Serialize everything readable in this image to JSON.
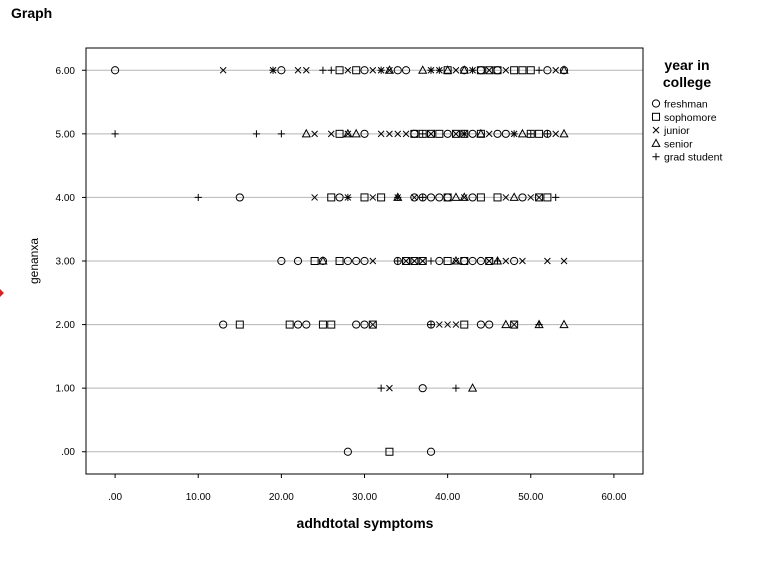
{
  "page": {
    "title": "Graph"
  },
  "chart_data": {
    "type": "scatter",
    "title": "",
    "xlabel": "adhdtotal symptoms",
    "ylabel": "genanxa",
    "xlim": [
      -3.5,
      63.5
    ],
    "ylim": [
      -0.35,
      6.35
    ],
    "x_ticks": [
      0,
      10,
      20,
      30,
      40,
      50,
      60
    ],
    "x_tick_labels": [
      ".00",
      "10.00",
      "20.00",
      "30.00",
      "40.00",
      "50.00",
      "60.00"
    ],
    "y_ticks": [
      0,
      1,
      2,
      3,
      4,
      5,
      6
    ],
    "y_tick_labels": [
      ".00",
      "1.00",
      "2.00",
      "3.00",
      "4.00",
      "5.00",
      "6.00"
    ],
    "grid": "horizontal",
    "legend": {
      "title_lines": [
        "year in",
        "college"
      ],
      "placement": "right"
    },
    "series": [
      {
        "name": "freshman",
        "marker": "circle",
        "points": [
          [
            0,
            6
          ],
          [
            20,
            6
          ],
          [
            30,
            6
          ],
          [
            34,
            6
          ],
          [
            35,
            6
          ],
          [
            42,
            6
          ],
          [
            44,
            6
          ],
          [
            46,
            6
          ],
          [
            52,
            6
          ],
          [
            54,
            6
          ],
          [
            30,
            5
          ],
          [
            36,
            5
          ],
          [
            40,
            5
          ],
          [
            43,
            5
          ],
          [
            46,
            5
          ],
          [
            47,
            5
          ],
          [
            52,
            5
          ],
          [
            15,
            4
          ],
          [
            27,
            4
          ],
          [
            36,
            4
          ],
          [
            37,
            4
          ],
          [
            38,
            4
          ],
          [
            39,
            4
          ],
          [
            40,
            4
          ],
          [
            43,
            4
          ],
          [
            49,
            4
          ],
          [
            20,
            3
          ],
          [
            22,
            3
          ],
          [
            25,
            3
          ],
          [
            28,
            3
          ],
          [
            29,
            3
          ],
          [
            30,
            3
          ],
          [
            34,
            3
          ],
          [
            39,
            3
          ],
          [
            42,
            3
          ],
          [
            43,
            3
          ],
          [
            44,
            3
          ],
          [
            48,
            3
          ],
          [
            13,
            2
          ],
          [
            22,
            2
          ],
          [
            23,
            2
          ],
          [
            29,
            2
          ],
          [
            30,
            2
          ],
          [
            38,
            2
          ],
          [
            44,
            2
          ],
          [
            45,
            2
          ],
          [
            37,
            1
          ],
          [
            28,
            0
          ],
          [
            38,
            0
          ]
        ]
      },
      {
        "name": "sophomore",
        "marker": "square",
        "points": [
          [
            27,
            6
          ],
          [
            29,
            6
          ],
          [
            40,
            6
          ],
          [
            44,
            6
          ],
          [
            45,
            6
          ],
          [
            46,
            6
          ],
          [
            48,
            6
          ],
          [
            49,
            6
          ],
          [
            50,
            6
          ],
          [
            27,
            5
          ],
          [
            36,
            5
          ],
          [
            37,
            5
          ],
          [
            38,
            5
          ],
          [
            39,
            5
          ],
          [
            41,
            5
          ],
          [
            42,
            5
          ],
          [
            44,
            5
          ],
          [
            50,
            5
          ],
          [
            51,
            5
          ],
          [
            26,
            4
          ],
          [
            30,
            4
          ],
          [
            32,
            4
          ],
          [
            40,
            4
          ],
          [
            44,
            4
          ],
          [
            46,
            4
          ],
          [
            51,
            4
          ],
          [
            52,
            4
          ],
          [
            24,
            3
          ],
          [
            27,
            3
          ],
          [
            35,
            3
          ],
          [
            36,
            3
          ],
          [
            37,
            3
          ],
          [
            40,
            3
          ],
          [
            42,
            3
          ],
          [
            45,
            3
          ],
          [
            15,
            2
          ],
          [
            21,
            2
          ],
          [
            25,
            2
          ],
          [
            26,
            2
          ],
          [
            31,
            2
          ],
          [
            42,
            2
          ],
          [
            48,
            2
          ],
          [
            33,
            0
          ]
        ]
      },
      {
        "name": "junior",
        "marker": "x",
        "points": [
          [
            13,
            6
          ],
          [
            19,
            6
          ],
          [
            22,
            6
          ],
          [
            23,
            6
          ],
          [
            28,
            6
          ],
          [
            31,
            6
          ],
          [
            32,
            6
          ],
          [
            33,
            6
          ],
          [
            38,
            6
          ],
          [
            39,
            6
          ],
          [
            41,
            6
          ],
          [
            43,
            6
          ],
          [
            45,
            6
          ],
          [
            47,
            6
          ],
          [
            53,
            6
          ],
          [
            24,
            5
          ],
          [
            26,
            5
          ],
          [
            28,
            5
          ],
          [
            32,
            5
          ],
          [
            33,
            5
          ],
          [
            34,
            5
          ],
          [
            35,
            5
          ],
          [
            38,
            5
          ],
          [
            41,
            5
          ],
          [
            42,
            5
          ],
          [
            45,
            5
          ],
          [
            48,
            5
          ],
          [
            53,
            5
          ],
          [
            24,
            4
          ],
          [
            28,
            4
          ],
          [
            31,
            4
          ],
          [
            34,
            4
          ],
          [
            36,
            4
          ],
          [
            42,
            4
          ],
          [
            47,
            4
          ],
          [
            50,
            4
          ],
          [
            51,
            4
          ],
          [
            31,
            3
          ],
          [
            35,
            3
          ],
          [
            36,
            3
          ],
          [
            37,
            3
          ],
          [
            41,
            3
          ],
          [
            45,
            3
          ],
          [
            47,
            3
          ],
          [
            49,
            3
          ],
          [
            52,
            3
          ],
          [
            54,
            3
          ],
          [
            31,
            2
          ],
          [
            39,
            2
          ],
          [
            40,
            2
          ],
          [
            41,
            2
          ],
          [
            48,
            2
          ],
          [
            33,
            1
          ]
        ]
      },
      {
        "name": "senior",
        "marker": "triangle",
        "points": [
          [
            33,
            6
          ],
          [
            37,
            6
          ],
          [
            40,
            6
          ],
          [
            42,
            6
          ],
          [
            54,
            6
          ],
          [
            23,
            5
          ],
          [
            28,
            5
          ],
          [
            29,
            5
          ],
          [
            44,
            5
          ],
          [
            49,
            5
          ],
          [
            54,
            5
          ],
          [
            34,
            4
          ],
          [
            41,
            4
          ],
          [
            42,
            4
          ],
          [
            48,
            4
          ],
          [
            25,
            3
          ],
          [
            41,
            3
          ],
          [
            46,
            3
          ],
          [
            47,
            2
          ],
          [
            51,
            2
          ],
          [
            54,
            2
          ],
          [
            43,
            1
          ]
        ]
      },
      {
        "name": "grad student",
        "marker": "plus",
        "points": [
          [
            19,
            6
          ],
          [
            25,
            6
          ],
          [
            26,
            6
          ],
          [
            32,
            6
          ],
          [
            38,
            6
          ],
          [
            39,
            6
          ],
          [
            43,
            6
          ],
          [
            51,
            6
          ],
          [
            0,
            5
          ],
          [
            17,
            5
          ],
          [
            20,
            5
          ],
          [
            37,
            5
          ],
          [
            42,
            5
          ],
          [
            48,
            5
          ],
          [
            50,
            5
          ],
          [
            52,
            5
          ],
          [
            10,
            4
          ],
          [
            28,
            4
          ],
          [
            34,
            4
          ],
          [
            37,
            4
          ],
          [
            53,
            4
          ],
          [
            34,
            3
          ],
          [
            38,
            3
          ],
          [
            46,
            3
          ],
          [
            38,
            2
          ],
          [
            51,
            2
          ],
          [
            32,
            1
          ],
          [
            41,
            1
          ]
        ]
      }
    ]
  }
}
